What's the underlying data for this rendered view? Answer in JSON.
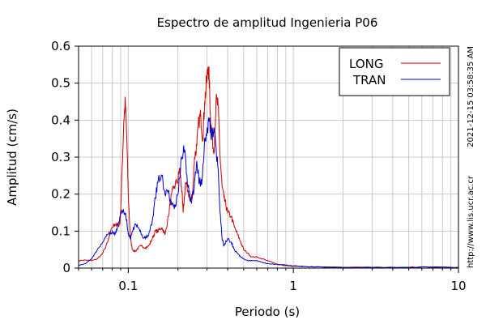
{
  "chart_data": {
    "type": "line",
    "title": "Espectro de amplitud Ingenieria P06",
    "xlabel": "Periodo (s)",
    "ylabel": "Amplitud (cm/s)",
    "x_scale": "log",
    "xlim": [
      0.05,
      10
    ],
    "ylim": [
      0,
      0.6
    ],
    "x_tick_labels": [
      {
        "value": 0.1,
        "label": "0.1"
      },
      {
        "value": 1,
        "label": "1"
      },
      {
        "value": 10,
        "label": "10"
      }
    ],
    "y_ticks": [
      0,
      0.1,
      0.2,
      0.3,
      0.4,
      0.5,
      0.6
    ],
    "y_tick_labels": [
      "0",
      "0.1",
      "0.2",
      "0.3",
      "0.4",
      "0.5",
      "0.6"
    ],
    "grid": true,
    "legend_position": "top-right",
    "side_text_top": "2021-12-15 03:58:35 AM",
    "side_text_bottom": "http://www.lis.ucr.ac.cr",
    "series": [
      {
        "name": "LONG",
        "color": "#cc0000",
        "x": [
          0.05,
          0.055,
          0.06,
          0.065,
          0.07,
          0.075,
          0.08,
          0.083,
          0.086,
          0.089,
          0.09,
          0.092,
          0.094,
          0.096,
          0.098,
          0.1,
          0.103,
          0.106,
          0.11,
          0.115,
          0.12,
          0.127,
          0.133,
          0.14,
          0.146,
          0.152,
          0.16,
          0.167,
          0.175,
          0.183,
          0.19,
          0.2,
          0.205,
          0.21,
          0.215,
          0.222,
          0.23,
          0.237,
          0.245,
          0.252,
          0.26,
          0.268,
          0.275,
          0.283,
          0.29,
          0.298,
          0.305,
          0.31,
          0.315,
          0.32,
          0.33,
          0.34,
          0.35,
          0.36,
          0.37,
          0.38,
          0.39,
          0.4,
          0.42,
          0.44,
          0.46,
          0.48,
          0.5,
          0.53,
          0.56,
          0.6,
          0.65,
          0.7,
          0.8,
          0.9,
          1.0,
          1.2,
          1.5,
          2.0,
          3.0,
          5.0,
          6.0,
          7.0,
          8.0,
          10.0
        ],
        "y": [
          0.02,
          0.022,
          0.02,
          0.025,
          0.04,
          0.07,
          0.11,
          0.12,
          0.115,
          0.12,
          0.16,
          0.28,
          0.4,
          0.45,
          0.35,
          0.2,
          0.08,
          0.05,
          0.045,
          0.055,
          0.06,
          0.055,
          0.06,
          0.08,
          0.1,
          0.1,
          0.11,
          0.09,
          0.14,
          0.2,
          0.22,
          0.24,
          0.27,
          0.22,
          0.15,
          0.23,
          0.21,
          0.18,
          0.2,
          0.3,
          0.33,
          0.4,
          0.41,
          0.35,
          0.45,
          0.5,
          0.545,
          0.5,
          0.4,
          0.37,
          0.31,
          0.45,
          0.44,
          0.3,
          0.22,
          0.19,
          0.17,
          0.15,
          0.14,
          0.11,
          0.09,
          0.07,
          0.05,
          0.04,
          0.03,
          0.03,
          0.025,
          0.02,
          0.01,
          0.007,
          0.005,
          0.004,
          0.003,
          0.002,
          0.002,
          0.002,
          0.003,
          0.002,
          0.003,
          0.002
        ]
      },
      {
        "name": "TRAN",
        "color": "#0000cc",
        "x": [
          0.05,
          0.055,
          0.06,
          0.065,
          0.07,
          0.075,
          0.08,
          0.083,
          0.086,
          0.089,
          0.092,
          0.095,
          0.098,
          0.1,
          0.103,
          0.106,
          0.11,
          0.115,
          0.12,
          0.127,
          0.133,
          0.14,
          0.146,
          0.152,
          0.16,
          0.167,
          0.175,
          0.183,
          0.19,
          0.2,
          0.21,
          0.22,
          0.23,
          0.24,
          0.25,
          0.26,
          0.27,
          0.28,
          0.29,
          0.3,
          0.31,
          0.32,
          0.33,
          0.34,
          0.35,
          0.36,
          0.37,
          0.38,
          0.4,
          0.42,
          0.44,
          0.46,
          0.48,
          0.5,
          0.53,
          0.56,
          0.6,
          0.65,
          0.7,
          0.8,
          0.9,
          1.0,
          1.2,
          1.5,
          2.0,
          3.0,
          5.0,
          7.0,
          10.0
        ],
        "y": [
          0.008,
          0.012,
          0.025,
          0.05,
          0.07,
          0.09,
          0.1,
          0.09,
          0.11,
          0.14,
          0.155,
          0.15,
          0.13,
          0.09,
          0.08,
          0.1,
          0.12,
          0.11,
          0.09,
          0.08,
          0.09,
          0.13,
          0.19,
          0.24,
          0.25,
          0.2,
          0.21,
          0.17,
          0.16,
          0.2,
          0.3,
          0.32,
          0.22,
          0.18,
          0.21,
          0.29,
          0.23,
          0.24,
          0.35,
          0.38,
          0.4,
          0.36,
          0.38,
          0.33,
          0.27,
          0.15,
          0.08,
          0.06,
          0.08,
          0.07,
          0.05,
          0.04,
          0.03,
          0.025,
          0.02,
          0.02,
          0.02,
          0.015,
          0.012,
          0.01,
          0.008,
          0.006,
          0.004,
          0.003,
          0.002,
          0.002,
          0.002,
          0.003,
          0.002
        ]
      }
    ]
  }
}
